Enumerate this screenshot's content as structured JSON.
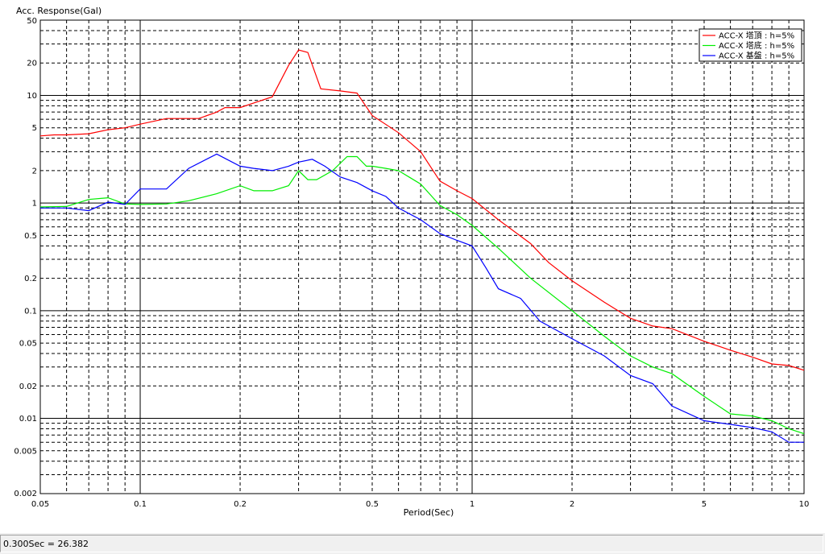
{
  "status_bar": {
    "text": "0.300Sec = 26.382"
  },
  "chart_data": {
    "type": "line",
    "title": "",
    "ylabel": "Acc. Response(Gal)",
    "xlabel": "Period(Sec)",
    "xscale": "log",
    "yscale": "log",
    "xlim": [
      0.05,
      10
    ],
    "ylim": [
      0.002,
      50
    ],
    "grid": true,
    "legend_position": "top-right",
    "x_ticks": [
      "0.05",
      "0.1",
      "0.2",
      "0.5",
      "1",
      "2",
      "5",
      "10"
    ],
    "y_ticks": [
      "50",
      "20",
      "10",
      "5",
      "2",
      "1",
      "0.5",
      "0.2",
      "0.1",
      "0.05",
      "0.02",
      "0.01",
      "0.005",
      "0.002"
    ],
    "series": [
      {
        "name": "ACC-X 塔頂 : h=5%",
        "color": "#ff0000",
        "points": [
          [
            0.05,
            4.2
          ],
          [
            0.055,
            4.3
          ],
          [
            0.06,
            4.3
          ],
          [
            0.07,
            4.4
          ],
          [
            0.08,
            4.8
          ],
          [
            0.09,
            5.0
          ],
          [
            0.1,
            5.4
          ],
          [
            0.12,
            6.1
          ],
          [
            0.15,
            6.1
          ],
          [
            0.17,
            7.0
          ],
          [
            0.18,
            7.7
          ],
          [
            0.2,
            7.7
          ],
          [
            0.25,
            9.7
          ],
          [
            0.28,
            19.0
          ],
          [
            0.3,
            26.4
          ],
          [
            0.32,
            25.0
          ],
          [
            0.35,
            11.5
          ],
          [
            0.4,
            11.0
          ],
          [
            0.45,
            10.5
          ],
          [
            0.5,
            6.5
          ],
          [
            0.6,
            4.5
          ],
          [
            0.7,
            3.0
          ],
          [
            0.8,
            1.6
          ],
          [
            0.9,
            1.3
          ],
          [
            1.0,
            1.1
          ],
          [
            1.2,
            0.7
          ],
          [
            1.5,
            0.42
          ],
          [
            1.7,
            0.28
          ],
          [
            2.0,
            0.19
          ],
          [
            2.5,
            0.12
          ],
          [
            3.0,
            0.085
          ],
          [
            3.5,
            0.072
          ],
          [
            4.0,
            0.068
          ],
          [
            5.0,
            0.052
          ],
          [
            6.0,
            0.043
          ],
          [
            7.0,
            0.037
          ],
          [
            8.0,
            0.032
          ],
          [
            9.0,
            0.031
          ],
          [
            10.0,
            0.028
          ]
        ]
      },
      {
        "name": "ACC-X 塔底 : h=5%",
        "color": "#00ee00",
        "points": [
          [
            0.05,
            0.92
          ],
          [
            0.06,
            0.93
          ],
          [
            0.07,
            1.08
          ],
          [
            0.08,
            1.12
          ],
          [
            0.09,
            0.98
          ],
          [
            0.1,
            0.97
          ],
          [
            0.12,
            0.98
          ],
          [
            0.14,
            1.05
          ],
          [
            0.17,
            1.22
          ],
          [
            0.2,
            1.45
          ],
          [
            0.22,
            1.3
          ],
          [
            0.25,
            1.3
          ],
          [
            0.28,
            1.45
          ],
          [
            0.3,
            2.0
          ],
          [
            0.32,
            1.65
          ],
          [
            0.34,
            1.65
          ],
          [
            0.38,
            2.0
          ],
          [
            0.42,
            2.7
          ],
          [
            0.45,
            2.7
          ],
          [
            0.48,
            2.2
          ],
          [
            0.5,
            2.2
          ],
          [
            0.55,
            2.1
          ],
          [
            0.6,
            2.0
          ],
          [
            0.7,
            1.5
          ],
          [
            0.8,
            0.95
          ],
          [
            0.9,
            0.78
          ],
          [
            1.0,
            0.62
          ],
          [
            1.2,
            0.38
          ],
          [
            1.5,
            0.2
          ],
          [
            2.0,
            0.1
          ],
          [
            2.5,
            0.058
          ],
          [
            3.0,
            0.038
          ],
          [
            3.5,
            0.03
          ],
          [
            4.0,
            0.026
          ],
          [
            5.0,
            0.016
          ],
          [
            6.0,
            0.011
          ],
          [
            7.0,
            0.0105
          ],
          [
            8.0,
            0.0095
          ],
          [
            9.0,
            0.008
          ],
          [
            10.0,
            0.0072
          ]
        ]
      },
      {
        "name": "ACC-X 基盤 : h=5%",
        "color": "#0000ff",
        "points": [
          [
            0.05,
            0.9
          ],
          [
            0.06,
            0.9
          ],
          [
            0.07,
            0.85
          ],
          [
            0.08,
            1.02
          ],
          [
            0.09,
            0.97
          ],
          [
            0.1,
            1.35
          ],
          [
            0.12,
            1.35
          ],
          [
            0.14,
            2.1
          ],
          [
            0.17,
            2.85
          ],
          [
            0.2,
            2.2
          ],
          [
            0.22,
            2.1
          ],
          [
            0.25,
            2.0
          ],
          [
            0.28,
            2.2
          ],
          [
            0.3,
            2.4
          ],
          [
            0.33,
            2.55
          ],
          [
            0.36,
            2.2
          ],
          [
            0.4,
            1.75
          ],
          [
            0.45,
            1.55
          ],
          [
            0.5,
            1.3
          ],
          [
            0.55,
            1.15
          ],
          [
            0.6,
            0.9
          ],
          [
            0.7,
            0.7
          ],
          [
            0.8,
            0.52
          ],
          [
            0.9,
            0.45
          ],
          [
            1.0,
            0.4
          ],
          [
            1.1,
            0.25
          ],
          [
            1.2,
            0.16
          ],
          [
            1.4,
            0.13
          ],
          [
            1.6,
            0.08
          ],
          [
            2.0,
            0.055
          ],
          [
            2.5,
            0.038
          ],
          [
            3.0,
            0.025
          ],
          [
            3.5,
            0.021
          ],
          [
            4.0,
            0.013
          ],
          [
            5.0,
            0.0095
          ],
          [
            6.0,
            0.0088
          ],
          [
            7.0,
            0.0082
          ],
          [
            8.0,
            0.0075
          ],
          [
            9.0,
            0.006
          ],
          [
            10.0,
            0.006
          ]
        ]
      }
    ]
  }
}
